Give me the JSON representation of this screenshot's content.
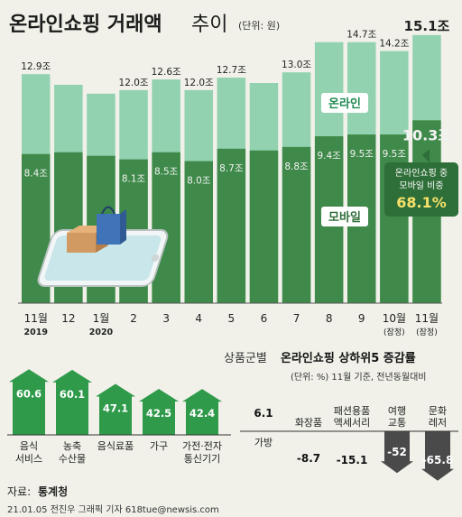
{
  "header": {
    "title": "온라인쇼핑 거래액",
    "title_suffix": "추이",
    "unit": "(단위: 원)"
  },
  "callout": {
    "line1": "온라인쇼핑 중",
    "line2": "모바일 비중",
    "value": "68.1%"
  },
  "colors": {
    "online": "#92d2b0",
    "mobile": "#3f8a4a",
    "online_label": "#1e8a50",
    "callout_bg": "#2e6e38",
    "callout_value": "#f6e16a",
    "up_arrow": "#2f9a4a",
    "down_arrow": "#4a4a4a"
  },
  "chart_data": [
    {
      "type": "bar",
      "categories": [
        "11월",
        "12",
        "1월",
        "2",
        "3",
        "4",
        "5",
        "6",
        "7",
        "8",
        "9",
        "10월",
        "11월"
      ],
      "category_sublabels": [
        "2019",
        "",
        "2020",
        "",
        "",
        "",
        "",
        "",
        "",
        "",
        "",
        "(잠정)",
        "(잠정)"
      ],
      "series": [
        {
          "name": "온라인",
          "values": [
            12.9,
            12.3,
            11.8,
            12.0,
            12.6,
            12.0,
            12.7,
            12.4,
            13.0,
            14.7,
            14.7,
            14.2,
            15.1
          ],
          "value_labels": [
            "12.9조",
            "",
            "",
            "12.0조",
            "12.6조",
            "12.0조",
            "12.7조",
            "",
            "13.0조",
            "",
            "14.7조",
            "14.2조",
            "15.1조"
          ]
        },
        {
          "name": "모바일",
          "values": [
            8.4,
            8.5,
            8.3,
            8.1,
            8.5,
            8.0,
            8.7,
            8.6,
            8.8,
            9.4,
            9.5,
            9.5,
            10.3
          ],
          "value_labels": [
            "8.4조",
            "",
            "",
            "8.1조",
            "8.5조",
            "8.0조",
            "8.7조",
            "",
            "8.8조",
            "9.4조",
            "9.5조",
            "9.5조",
            "10.3조"
          ]
        }
      ],
      "ylim": [
        0,
        15.5
      ]
    },
    {
      "type": "bar",
      "title_prefix": "상품군별",
      "title": "온라인쇼핑 상하위5 증감률",
      "subtitle": "(단위: %) 11월 기준, 전년동월대비",
      "top": [
        {
          "label": "음식\n서비스",
          "value": 60.6,
          "value_label": "60.6"
        },
        {
          "label": "농축\n수산물",
          "value": 60.1,
          "value_label": "60.1"
        },
        {
          "label": "음식료품",
          "value": 47.1,
          "value_label": "47.1"
        },
        {
          "label": "가구",
          "value": 42.5,
          "value_label": "42.5"
        },
        {
          "label": "가전·전자\n통신기기",
          "value": 42.4,
          "value_label": "42.4"
        }
      ],
      "bottom": [
        {
          "label": "가방",
          "value": 6.1,
          "value_label": "6.1"
        },
        {
          "label": "화장품",
          "value": -8.7,
          "value_label": "-8.7"
        },
        {
          "label": "패션용품\n액세서리",
          "value": -15.1,
          "value_label": "-15.1"
        },
        {
          "label": "여행\n교통",
          "value": -52,
          "value_label": "-52"
        },
        {
          "label": "문화\n레저",
          "value": -65.8,
          "value_label": "-65.8"
        }
      ]
    }
  ],
  "footer": {
    "source_label": "자료:",
    "source_name": "통계청",
    "credit": "21.01.05 전진우 그래픽 기자 618tue@newsis.com"
  }
}
